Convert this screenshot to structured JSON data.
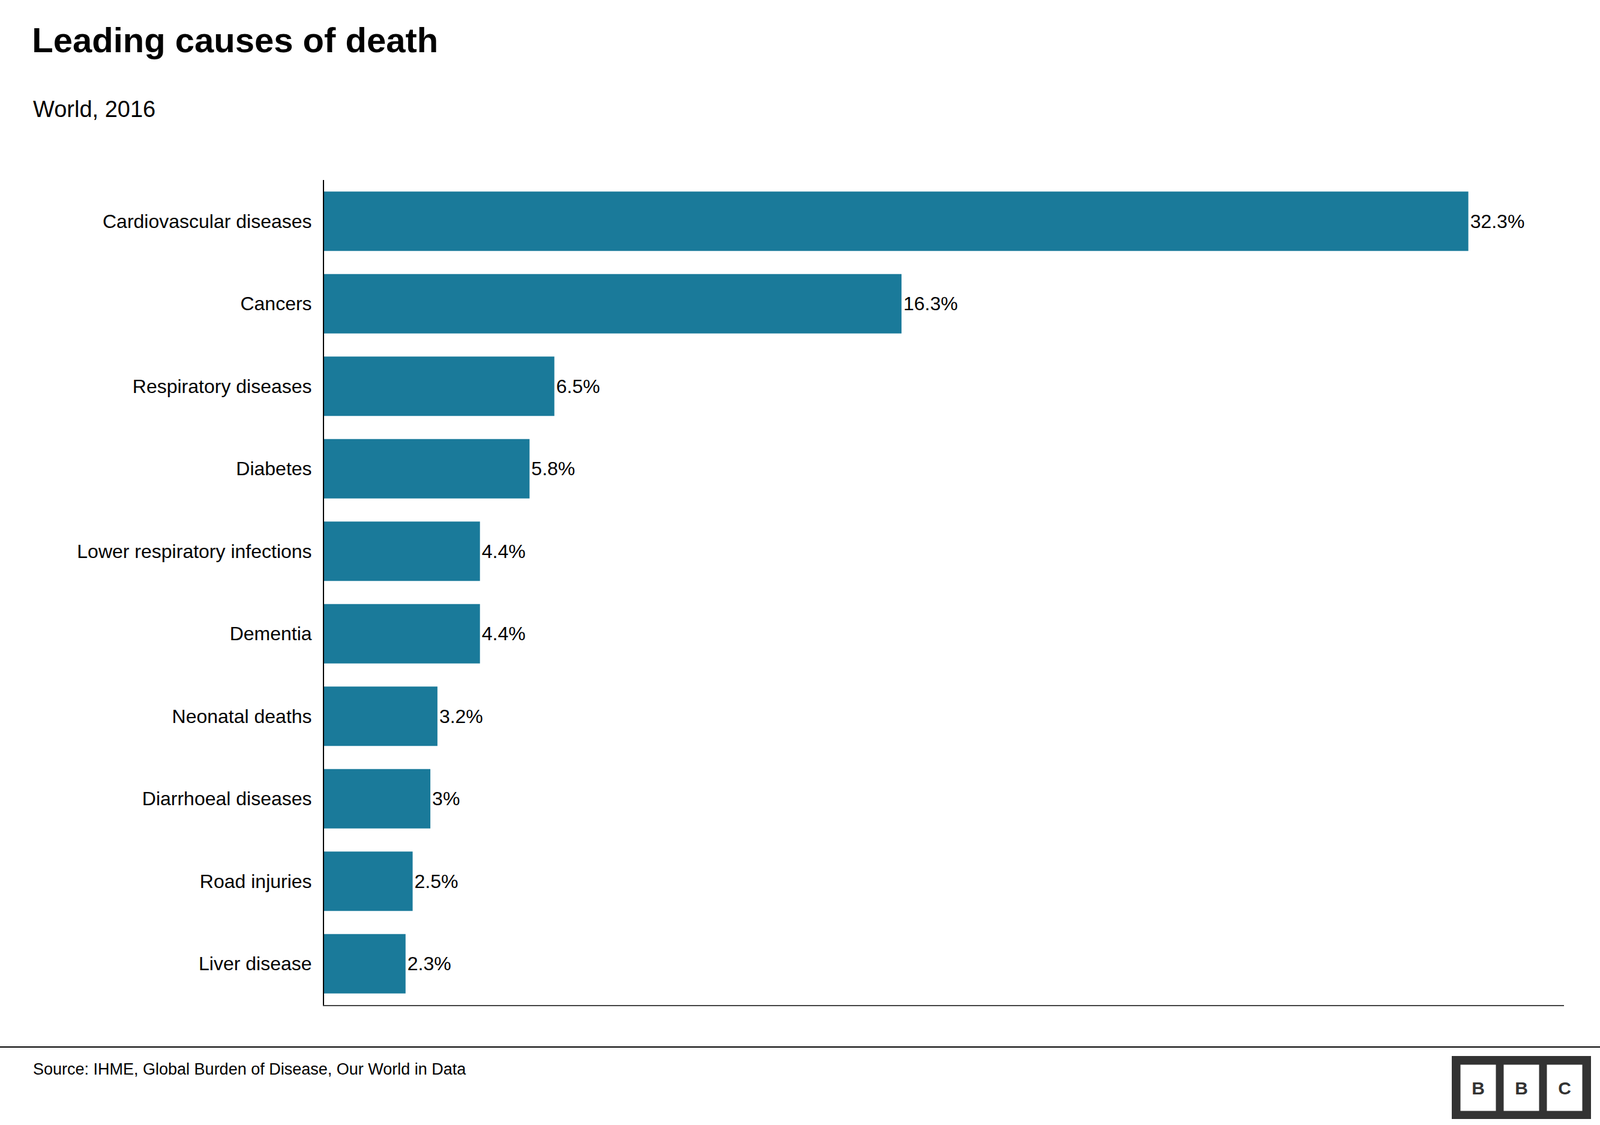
{
  "chart_data": {
    "type": "bar",
    "orientation": "horizontal",
    "title": "Leading causes of death",
    "subtitle": "World, 2016",
    "categories": [
      "Cardiovascular diseases",
      "Cancers",
      "Respiratory diseases",
      "Diabetes",
      "Lower respiratory infections",
      "Dementia",
      "Neonatal deaths",
      "Diarrhoeal diseases",
      "Road injuries",
      "Liver disease"
    ],
    "values": [
      32.3,
      16.3,
      6.5,
      5.8,
      4.4,
      4.4,
      3.2,
      3.0,
      2.5,
      2.3
    ],
    "value_labels": [
      "32.3%",
      "16.3%",
      "6.5%",
      "5.8%",
      "4.4%",
      "4.4%",
      "3.2%",
      "3%",
      "2.5%",
      "2.3%"
    ],
    "data_labels": true,
    "color": "#1a7a9a",
    "xlim": [
      0,
      35
    ],
    "tick_labels": "y",
    "grid": false,
    "annotations": [
      "Source: IHME, Global Burden of Disease, Our World in Data",
      "B",
      "B",
      "C"
    ]
  }
}
